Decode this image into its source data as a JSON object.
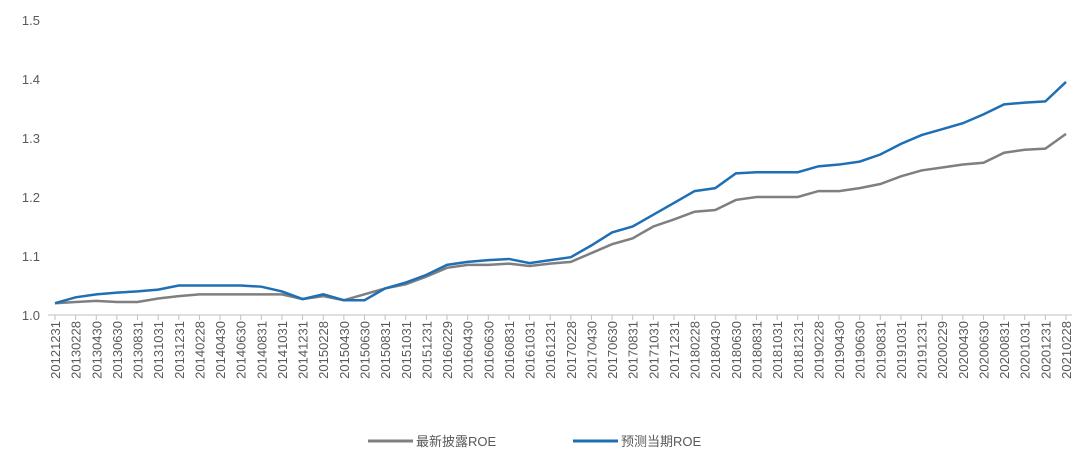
{
  "chart_data": {
    "type": "line",
    "categories": [
      "20121231",
      "20130228",
      "20130430",
      "20130630",
      "20130831",
      "20131031",
      "20131231",
      "20140228",
      "20140430",
      "20140630",
      "20140831",
      "20141031",
      "20141231",
      "20150228",
      "20150430",
      "20150630",
      "20150831",
      "20151031",
      "20151231",
      "20160229",
      "20160430",
      "20160630",
      "20160831",
      "20161031",
      "20161231",
      "20170228",
      "20170430",
      "20170630",
      "20170831",
      "20171031",
      "20171231",
      "20180228",
      "20180430",
      "20180630",
      "20180831",
      "20181031",
      "20181231",
      "20190228",
      "20190430",
      "20190630",
      "20190831",
      "20191031",
      "20191231",
      "20200229",
      "20200430",
      "20200630",
      "20200831",
      "20201031",
      "20201231",
      "20210228"
    ],
    "series": [
      {
        "name": "最新披露ROE",
        "color": "#7f7f7f",
        "values": [
          1.02,
          1.022,
          1.024,
          1.022,
          1.022,
          1.028,
          1.032,
          1.035,
          1.035,
          1.035,
          1.035,
          1.035,
          1.027,
          1.032,
          1.025,
          1.035,
          1.045,
          1.052,
          1.065,
          1.08,
          1.085,
          1.085,
          1.087,
          1.083,
          1.087,
          1.09,
          1.105,
          1.12,
          1.13,
          1.15,
          1.162,
          1.175,
          1.178,
          1.195,
          1.2,
          1.2,
          1.2,
          1.21,
          1.21,
          1.215,
          1.222,
          1.235,
          1.245,
          1.25,
          1.255,
          1.258,
          1.275,
          1.28,
          1.282,
          1.307
        ]
      },
      {
        "name": "预测当期ROE",
        "color": "#1f6fb5",
        "values": [
          1.02,
          1.03,
          1.035,
          1.038,
          1.04,
          1.043,
          1.05,
          1.05,
          1.05,
          1.05,
          1.048,
          1.04,
          1.027,
          1.035,
          1.025,
          1.025,
          1.045,
          1.055,
          1.068,
          1.085,
          1.09,
          1.093,
          1.095,
          1.088,
          1.093,
          1.098,
          1.118,
          1.14,
          1.15,
          1.17,
          1.19,
          1.21,
          1.215,
          1.24,
          1.242,
          1.242,
          1.242,
          1.252,
          1.255,
          1.26,
          1.272,
          1.29,
          1.305,
          1.315,
          1.325,
          1.34,
          1.357,
          1.36,
          1.362,
          1.395
        ]
      }
    ],
    "ylim": [
      1,
      1.5
    ],
    "yticks": [
      {
        "value": 1,
        "label": "1.0"
      },
      1.1,
      1.2,
      1.3,
      1.4,
      1.5
    ],
    "grid": false
  }
}
